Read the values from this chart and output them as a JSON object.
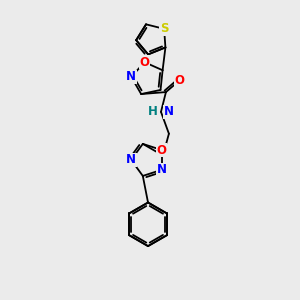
{
  "background_color": "#ebebeb",
  "bond_color": "#000000",
  "atom_colors": {
    "S": "#cccc00",
    "O": "#ff0000",
    "N": "#0000ff",
    "H": "#008080",
    "C": "#000000"
  },
  "lw": 1.3,
  "fs": 8.5
}
